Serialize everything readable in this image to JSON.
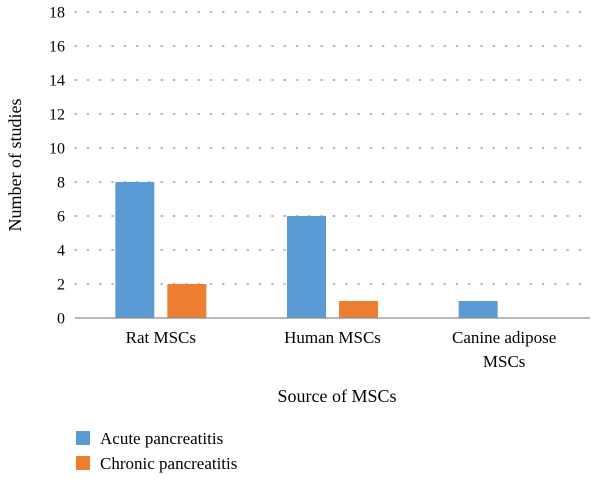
{
  "chart_data": {
    "type": "bar",
    "categories": [
      "Rat MSCs",
      "Human MSCs",
      "Canine adipose MSCs"
    ],
    "category_lines": [
      [
        "Rat MSCs"
      ],
      [
        "Human MSCs"
      ],
      [
        "Canine adipose",
        "MSCs"
      ]
    ],
    "series": [
      {
        "name": "Acute pancreatitis",
        "values": [
          8,
          6,
          1
        ],
        "color": "#5b9bd5"
      },
      {
        "name": "Chronic pancreatitis",
        "values": [
          2,
          1,
          0
        ],
        "color": "#ed7d31"
      }
    ],
    "title": "",
    "xlabel": "Source of MSCs",
    "ylabel": "Number of studies",
    "ylim": [
      0,
      18
    ],
    "yticks": [
      0,
      2,
      4,
      6,
      8,
      10,
      12,
      14,
      16,
      18
    ],
    "grid": true,
    "legend_position": "bottom-left"
  }
}
